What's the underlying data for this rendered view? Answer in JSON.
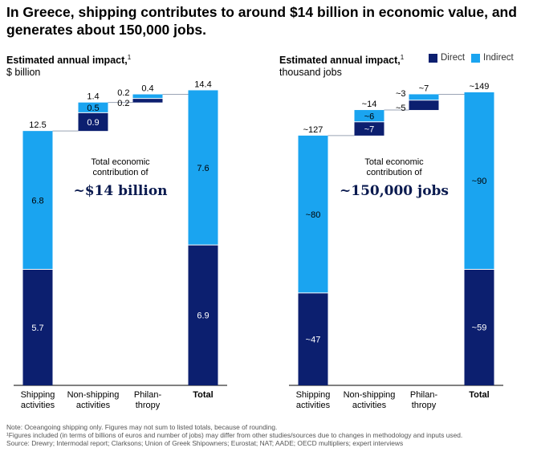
{
  "headline": "In Greece, shipping contributes to around $14 billion in economic value, and generates about 150,000 jobs.",
  "legend": [
    {
      "label": "Direct",
      "color": "#0c1f6f"
    },
    {
      "label": "Indirect",
      "color": "#1aa4f0"
    }
  ],
  "chart_data": [
    {
      "type": "bar",
      "title": "Estimated annual impact,",
      "title_sup": "1",
      "unit": "$ billion",
      "categories": [
        "Shipping\nactivities",
        "Non-shipping\nactivities",
        "Philan-\nthropy",
        "Total"
      ],
      "ylim": [
        0,
        14.4
      ],
      "series": [
        {
          "name": "Direct",
          "values": [
            5.7,
            0.9,
            0.2,
            6.9
          ]
        },
        {
          "name": "Indirect",
          "values": [
            6.8,
            0.5,
            0.2,
            7.6
          ]
        }
      ],
      "base": [
        0,
        12.5,
        13.9,
        0
      ],
      "total_labels": [
        "12.5",
        "1.4",
        "0.4",
        "14.4"
      ],
      "direct_labels": [
        "5.7",
        "0.9",
        "0.2",
        "6.9"
      ],
      "indirect_labels": [
        "6.8",
        "0.5",
        "0.2",
        "7.6"
      ],
      "annotation": {
        "line1": "Total economic",
        "line2": "contribution of",
        "big": "~$14 billion"
      }
    },
    {
      "type": "bar",
      "title": "Estimated annual impact,",
      "title_sup": "1",
      "unit": "thousand jobs",
      "categories": [
        "Shipping\nactivities",
        "Non-shipping\nactivities",
        "Philan-\nthropy",
        "Total"
      ],
      "ylim": [
        0,
        149
      ],
      "series": [
        {
          "name": "Direct",
          "values": [
            47,
            7,
            5,
            59
          ]
        },
        {
          "name": "Indirect",
          "values": [
            80,
            6,
            3,
            90
          ]
        }
      ],
      "base": [
        0,
        127,
        140,
        0
      ],
      "total_labels": [
        "~127",
        "~14",
        "~7",
        "~149"
      ],
      "direct_labels": [
        "~47",
        "~7",
        "~5",
        "~59"
      ],
      "indirect_labels": [
        "~80",
        "~6",
        "~3",
        "~90"
      ],
      "annotation": {
        "line1": "Total economic",
        "line2": "contribution of",
        "big": "~150,000 jobs"
      }
    }
  ],
  "notes": [
    "Note: Oceangoing shipping only. Figures may not sum to listed totals, because of rounding.",
    "¹Figures included (in terms of billions of euros and number of jobs) may differ from other studies/sources due to changes in methodology and inputs used.",
    "Source: Drewry; Intermodal report; Clarksons; Union of Greek Shipowners; Eurostat; NAT; AADE; OECD multipliers; expert interviews"
  ]
}
